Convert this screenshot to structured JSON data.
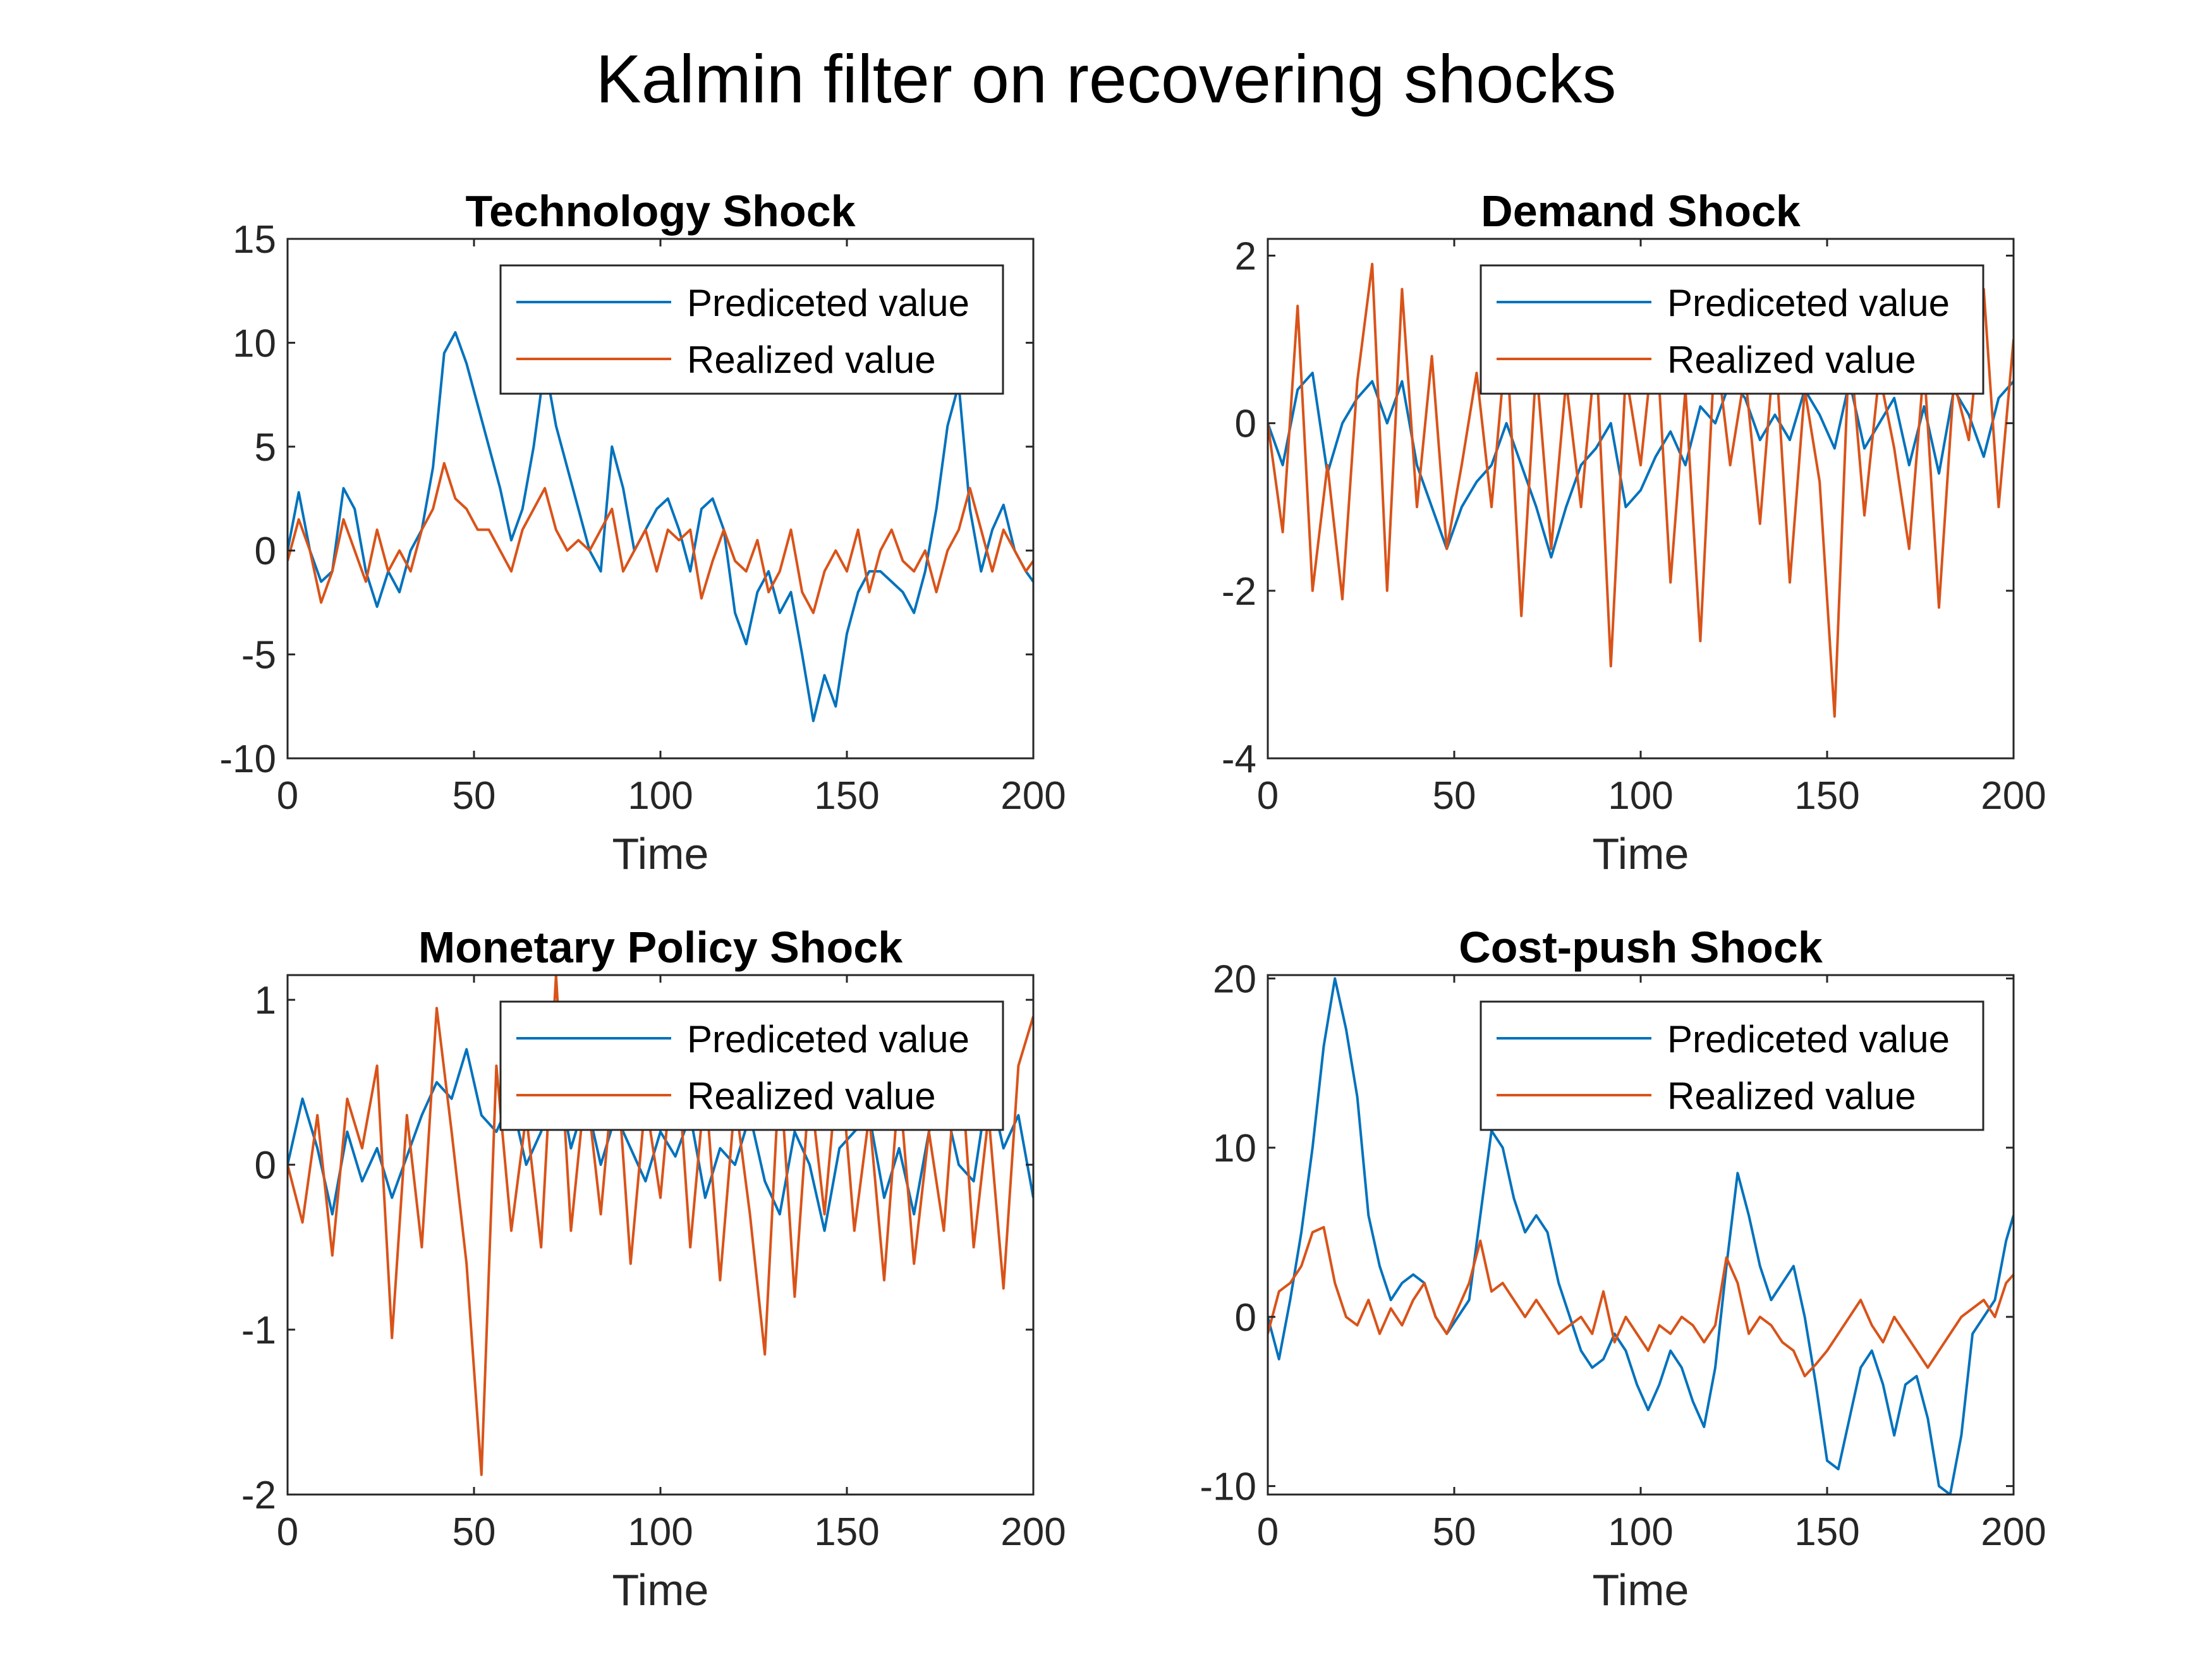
{
  "figure_title": "Kalmin filter on recovering shocks",
  "colors": {
    "predicted": "#0072BD",
    "realized": "#D95319",
    "axes": "#262626"
  },
  "chart_data": [
    {
      "type": "line",
      "title": "Technology Shock",
      "xlabel": "Time",
      "ylabel": "",
      "xlim": [
        0,
        200
      ],
      "ylim": [
        -10,
        15
      ],
      "xticks": [
        0,
        50,
        100,
        150,
        200
      ],
      "yticks": [
        -10,
        -5,
        0,
        5,
        10,
        15
      ],
      "legend": {
        "location": "top-right",
        "entries": [
          "Prediceted value",
          "Realized value"
        ]
      },
      "series": [
        {
          "name": "Prediceted value",
          "x": [
            0,
            3,
            6,
            9,
            12,
            15,
            18,
            21,
            24,
            27,
            30,
            33,
            36,
            39,
            42,
            45,
            48,
            51,
            54,
            57,
            60,
            63,
            66,
            69,
            72,
            75,
            78,
            81,
            84,
            87,
            90,
            93,
            96,
            99,
            102,
            105,
            108,
            111,
            114,
            117,
            120,
            123,
            126,
            129,
            132,
            135,
            138,
            141,
            144,
            147,
            150,
            153,
            156,
            159,
            162,
            165,
            168,
            171,
            174,
            177,
            180,
            183,
            186,
            189,
            192,
            195,
            198,
            200
          ],
          "values": [
            0,
            2.8,
            0,
            -1.5,
            -1,
            3,
            2,
            -1,
            -2.7,
            -1,
            -2,
            0,
            1,
            4,
            9.5,
            10.5,
            9,
            7,
            5,
            3,
            0.5,
            2,
            5,
            9,
            6,
            4,
            2,
            0,
            -1,
            5,
            3,
            0,
            1,
            2,
            2.5,
            1,
            -1,
            2,
            2.5,
            1,
            -3,
            -4.5,
            -2,
            -1,
            -3,
            -2,
            -5,
            -8.2,
            -6,
            -7.5,
            -4,
            -2,
            -1,
            -1,
            -1.5,
            -2,
            -3,
            -1,
            2,
            6,
            8,
            2,
            -1,
            1,
            2.2,
            0,
            -1,
            -1.5
          ]
        },
        {
          "name": "Realized value",
          "x": [
            0,
            3,
            6,
            9,
            12,
            15,
            18,
            21,
            24,
            27,
            30,
            33,
            36,
            39,
            42,
            45,
            48,
            51,
            54,
            57,
            60,
            63,
            66,
            69,
            72,
            75,
            78,
            81,
            84,
            87,
            90,
            93,
            96,
            99,
            102,
            105,
            108,
            111,
            114,
            117,
            120,
            123,
            126,
            129,
            132,
            135,
            138,
            141,
            144,
            147,
            150,
            153,
            156,
            159,
            162,
            165,
            168,
            171,
            174,
            177,
            180,
            183,
            186,
            189,
            192,
            195,
            198,
            200
          ],
          "values": [
            -0.5,
            1.5,
            0,
            -2.5,
            -1,
            1.5,
            0,
            -1.5,
            1,
            -1,
            0,
            -1,
            1,
            2,
            4.2,
            2.5,
            2,
            1,
            1,
            0,
            -1,
            1,
            2,
            3,
            1,
            0,
            0.5,
            0,
            1,
            2,
            -1,
            0,
            1,
            -1,
            1,
            0.5,
            1,
            -2.3,
            -0.5,
            1,
            -0.5,
            -1,
            0.5,
            -2,
            -1,
            1,
            -2,
            -3,
            -1,
            0,
            -1,
            1,
            -2,
            0,
            1,
            -0.5,
            -1,
            0,
            -2,
            0,
            1,
            3,
            1,
            -1,
            1,
            0,
            -1,
            -0.5
          ]
        }
      ]
    },
    {
      "type": "line",
      "title": "Demand Shock",
      "xlabel": "Time",
      "ylabel": "",
      "xlim": [
        0,
        200
      ],
      "ylim": [
        -4,
        2.2
      ],
      "xticks": [
        0,
        50,
        100,
        150,
        200
      ],
      "yticks": [
        -4,
        -2,
        0,
        2
      ],
      "legend": {
        "location": "top-right",
        "entries": [
          "Prediceted value",
          "Realized value"
        ]
      },
      "series": [
        {
          "name": "Prediceted value",
          "x": [
            0,
            4,
            8,
            12,
            16,
            20,
            24,
            28,
            32,
            36,
            40,
            44,
            48,
            52,
            56,
            60,
            64,
            68,
            72,
            76,
            80,
            84,
            88,
            92,
            96,
            100,
            104,
            108,
            112,
            116,
            120,
            124,
            128,
            132,
            136,
            140,
            144,
            148,
            152,
            156,
            160,
            164,
            168,
            172,
            176,
            180,
            184,
            188,
            192,
            196,
            200
          ],
          "values": [
            0,
            -0.5,
            0.4,
            0.6,
            -0.6,
            0,
            0.3,
            0.5,
            0,
            0.5,
            -0.5,
            -1,
            -1.5,
            -1,
            -0.7,
            -0.5,
            0,
            -0.5,
            -1,
            -1.6,
            -1,
            -0.5,
            -0.3,
            0,
            -1,
            -0.8,
            -0.4,
            -0.1,
            -0.5,
            0.2,
            0,
            0.5,
            0.3,
            -0.2,
            0.1,
            -0.2,
            0.4,
            0.1,
            -0.3,
            0.5,
            -0.3,
            0,
            0.3,
            -0.5,
            0.2,
            -0.6,
            0.4,
            0.1,
            -0.4,
            0.3,
            0.5
          ]
        },
        {
          "name": "Realized value",
          "x": [
            0,
            4,
            8,
            12,
            16,
            20,
            24,
            28,
            32,
            36,
            40,
            44,
            48,
            52,
            56,
            60,
            64,
            68,
            72,
            76,
            80,
            84,
            88,
            92,
            96,
            100,
            104,
            108,
            112,
            116,
            120,
            124,
            128,
            132,
            136,
            140,
            144,
            148,
            152,
            156,
            160,
            164,
            168,
            172,
            176,
            180,
            184,
            188,
            192,
            196,
            200
          ],
          "values": [
            0,
            -1.3,
            1.4,
            -2,
            -0.5,
            -2.1,
            0.5,
            1.9,
            -2,
            1.6,
            -1,
            0.8,
            -1.5,
            -0.5,
            0.6,
            -1,
            1,
            -2.3,
            0.7,
            -1.5,
            0.5,
            -1,
            0.9,
            -2.9,
            0.6,
            -0.5,
            1.2,
            -1.9,
            0.4,
            -2.6,
            1,
            -0.5,
            0.6,
            -1.2,
            1,
            -1.9,
            0.4,
            -0.7,
            -3.5,
            1,
            -1.1,
            0.6,
            -0.3,
            -1.5,
            0.7,
            -2.2,
            0.5,
            -0.2,
            1.6,
            -1,
            1
          ]
        }
      ]
    },
    {
      "type": "line",
      "title": "Monetary Policy Shock",
      "xlabel": "Time",
      "ylabel": "",
      "xlim": [
        0,
        200
      ],
      "ylim": [
        -2,
        1.15
      ],
      "xticks": [
        0,
        50,
        100,
        150,
        200
      ],
      "yticks": [
        -2,
        -1,
        0,
        1
      ],
      "legend": {
        "location": "top-right",
        "entries": [
          "Prediceted value",
          "Realized value"
        ]
      },
      "series": [
        {
          "name": "Prediceted value",
          "x": [
            0,
            4,
            8,
            12,
            16,
            20,
            24,
            28,
            32,
            36,
            40,
            44,
            48,
            52,
            56,
            60,
            64,
            68,
            72,
            76,
            80,
            84,
            88,
            92,
            96,
            100,
            104,
            108,
            112,
            116,
            120,
            124,
            128,
            132,
            136,
            140,
            144,
            148,
            152,
            156,
            160,
            164,
            168,
            172,
            176,
            180,
            184,
            188,
            192,
            196,
            200
          ],
          "values": [
            0,
            0.4,
            0.1,
            -0.3,
            0.2,
            -0.1,
            0.1,
            -0.2,
            0.05,
            0.3,
            0.5,
            0.4,
            0.7,
            0.3,
            0.2,
            0.4,
            0,
            0.2,
            0.6,
            0.1,
            0.4,
            0,
            0.3,
            0.1,
            -0.1,
            0.2,
            0.05,
            0.3,
            -0.2,
            0.1,
            0,
            0.3,
            -0.1,
            -0.3,
            0.2,
            0,
            -0.4,
            0.1,
            0.2,
            0.3,
            -0.2,
            0.1,
            -0.3,
            0.2,
            0.4,
            0,
            -0.1,
            0.5,
            0.1,
            0.3,
            -0.2
          ]
        },
        {
          "name": "Realized value",
          "x": [
            0,
            4,
            8,
            12,
            16,
            20,
            24,
            28,
            32,
            36,
            40,
            44,
            48,
            52,
            56,
            60,
            64,
            68,
            72,
            76,
            80,
            84,
            88,
            92,
            96,
            100,
            104,
            108,
            112,
            116,
            120,
            124,
            128,
            132,
            136,
            140,
            144,
            148,
            152,
            156,
            160,
            164,
            168,
            172,
            176,
            180,
            184,
            188,
            192,
            196,
            200
          ],
          "values": [
            0,
            -0.35,
            0.3,
            -0.55,
            0.4,
            0.1,
            0.6,
            -1.05,
            0.3,
            -0.5,
            0.95,
            0.2,
            -0.6,
            -1.88,
            0.6,
            -0.4,
            0.3,
            -0.5,
            1.15,
            -0.4,
            0.5,
            -0.3,
            0.7,
            -0.6,
            0.4,
            -0.2,
            0.8,
            -0.5,
            0.5,
            -0.7,
            0.4,
            -0.3,
            -1.15,
            0.6,
            -0.8,
            0.5,
            -0.3,
            0.7,
            -0.4,
            0.3,
            -0.7,
            0.5,
            -0.6,
            0.2,
            -0.4,
            0.8,
            -0.5,
            0.3,
            -0.75,
            0.6,
            0.9
          ]
        }
      ]
    },
    {
      "type": "line",
      "title": "Cost-push Shock",
      "xlabel": "Time",
      "ylabel": "",
      "xlim": [
        0,
        200
      ],
      "ylim": [
        -10.5,
        20.2
      ],
      "xticks": [
        0,
        50,
        100,
        150,
        200
      ],
      "yticks": [
        -10,
        0,
        10,
        20
      ],
      "legend": {
        "location": "top-right",
        "entries": [
          "Prediceted value",
          "Realized value"
        ]
      },
      "series": [
        {
          "name": "Prediceted value",
          "x": [
            0,
            3,
            6,
            9,
            12,
            15,
            18,
            21,
            24,
            27,
            30,
            33,
            36,
            39,
            42,
            45,
            48,
            51,
            54,
            57,
            60,
            63,
            66,
            69,
            72,
            75,
            78,
            81,
            84,
            87,
            90,
            93,
            96,
            99,
            102,
            105,
            108,
            111,
            114,
            117,
            120,
            123,
            126,
            129,
            132,
            135,
            138,
            141,
            144,
            147,
            150,
            153,
            156,
            159,
            162,
            165,
            168,
            171,
            174,
            177,
            180,
            183,
            186,
            189,
            192,
            195,
            198,
            200
          ],
          "values": [
            0,
            -2.5,
            1,
            5,
            10,
            16,
            20,
            17,
            13,
            6,
            3,
            1,
            2,
            2.5,
            2,
            0,
            -1,
            0,
            1,
            6,
            11,
            10,
            7,
            5,
            6,
            5,
            2,
            0,
            -2,
            -3,
            -2.5,
            -1,
            -2,
            -4,
            -5.5,
            -4,
            -2,
            -3,
            -5,
            -6.5,
            -3,
            3,
            8.5,
            6,
            3,
            1,
            2,
            3,
            0,
            -4,
            -8.5,
            -9,
            -6,
            -3,
            -2,
            -4,
            -7,
            -4,
            -3.5,
            -6,
            -10,
            -10.5,
            -7,
            -1,
            0,
            1,
            4.5,
            6
          ]
        },
        {
          "name": "Realized value",
          "x": [
            0,
            3,
            6,
            9,
            12,
            15,
            18,
            21,
            24,
            27,
            30,
            33,
            36,
            39,
            42,
            45,
            48,
            51,
            54,
            57,
            60,
            63,
            66,
            69,
            72,
            75,
            78,
            81,
            84,
            87,
            90,
            93,
            96,
            99,
            102,
            105,
            108,
            111,
            114,
            117,
            120,
            123,
            126,
            129,
            132,
            135,
            138,
            141,
            144,
            147,
            150,
            153,
            156,
            159,
            162,
            165,
            168,
            171,
            174,
            177,
            180,
            183,
            186,
            189,
            192,
            195,
            198,
            200
          ],
          "values": [
            -1,
            1.5,
            2,
            3,
            5,
            5.3,
            2,
            0,
            -0.5,
            1,
            -1,
            0.5,
            -0.5,
            1,
            2,
            0,
            -1,
            0.5,
            2,
            4.5,
            1.5,
            2,
            1,
            0,
            1,
            0,
            -1,
            -0.5,
            0,
            -1,
            1.5,
            -1.5,
            0,
            -1,
            -2,
            -0.5,
            -1,
            0,
            -0.5,
            -1.5,
            -0.5,
            3.5,
            2,
            -1,
            0,
            -0.5,
            -1.5,
            -2,
            -3.5,
            -2.8,
            -2,
            -1,
            0,
            1,
            -0.5,
            -1.5,
            0,
            -1,
            -2,
            -3,
            -2,
            -1,
            0,
            0.5,
            1,
            0,
            2,
            2.5
          ]
        }
      ]
    }
  ]
}
